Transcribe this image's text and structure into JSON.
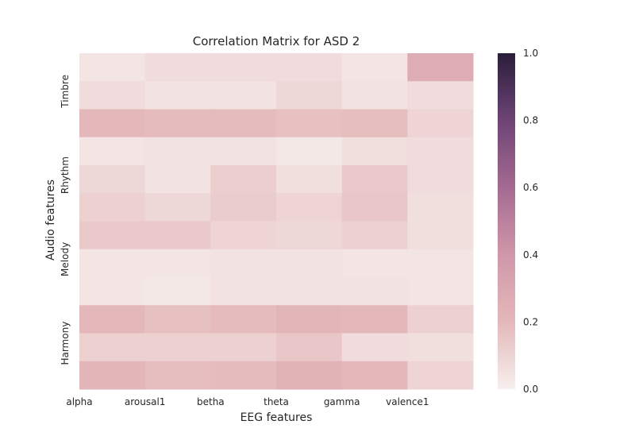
{
  "chart_data": {
    "type": "heatmap",
    "title": "Correlation Matrix for ASD 2",
    "xlabel": "EEG features",
    "ylabel": "Audio features",
    "x_tick_labels": [
      "alpha",
      "arousal1",
      "betha",
      "theta",
      "gamma",
      "valence1"
    ],
    "y_tick_labels": [
      "Timbre",
      "Rhythm",
      "Melody",
      "Harmony"
    ],
    "columns": 6,
    "rows": 12,
    "values": [
      [
        0.04,
        0.07,
        0.07,
        0.07,
        0.04,
        0.27
      ],
      [
        0.07,
        0.05,
        0.05,
        0.09,
        0.05,
        0.07
      ],
      [
        0.2,
        0.19,
        0.19,
        0.17,
        0.18,
        0.1
      ],
      [
        0.04,
        0.05,
        0.05,
        0.03,
        0.06,
        0.07
      ],
      [
        0.09,
        0.05,
        0.12,
        0.06,
        0.14,
        0.07
      ],
      [
        0.11,
        0.09,
        0.13,
        0.1,
        0.15,
        0.06
      ],
      [
        0.14,
        0.14,
        0.1,
        0.09,
        0.11,
        0.06
      ],
      [
        0.04,
        0.04,
        0.05,
        0.05,
        0.04,
        0.04
      ],
      [
        0.04,
        0.03,
        0.05,
        0.05,
        0.05,
        0.04
      ],
      [
        0.2,
        0.17,
        0.19,
        0.22,
        0.2,
        0.11
      ],
      [
        0.11,
        0.11,
        0.11,
        0.15,
        0.07,
        0.06
      ],
      [
        0.21,
        0.18,
        0.19,
        0.23,
        0.2,
        0.1
      ]
    ],
    "colorbar": {
      "range": [
        0.0,
        1.0
      ],
      "tick_labels": [
        "0.0",
        "0.2",
        "0.4",
        "0.6",
        "0.8",
        "1.0"
      ],
      "tick_values": [
        0.0,
        0.2,
        0.4,
        0.6,
        0.8,
        1.0
      ],
      "colormap_stops": [
        {
          "v": 0.0,
          "color": "#f7f0ee"
        },
        {
          "v": 0.2,
          "color": "#e4b8ba"
        },
        {
          "v": 0.4,
          "color": "#d097a9"
        },
        {
          "v": 0.6,
          "color": "#a56a92"
        },
        {
          "v": 0.8,
          "color": "#6e4475"
        },
        {
          "v": 1.0,
          "color": "#2a1d3c"
        }
      ]
    },
    "grid": false
  }
}
